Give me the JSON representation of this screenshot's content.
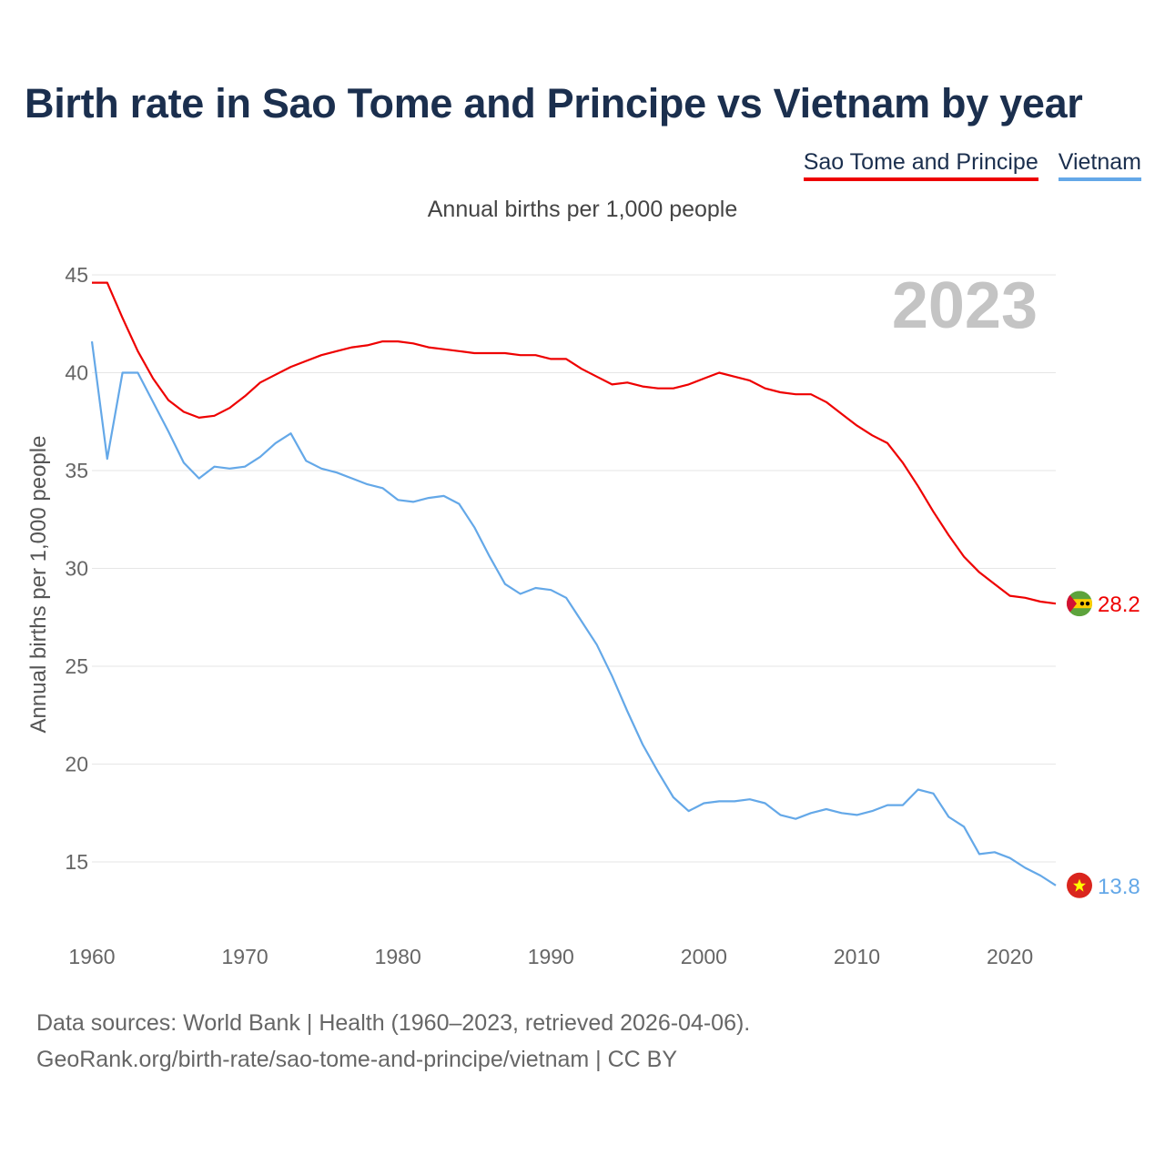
{
  "title": "Birth rate in Sao Tome and Principe vs Vietnam by year",
  "subtitle": "Annual births per 1,000 people",
  "footer": {
    "line1": "Data sources: World Bank | Health (1960–2023, retrieved 2026-04-06).",
    "line2": "GeoRank.org/birth-rate/sao-tome-and-principe/vietnam | CC BY"
  },
  "colors": {
    "sao_tome": "#ee0000",
    "vietnam": "#64a8e8",
    "title": "#1b2f4e"
  },
  "chart_data": {
    "type": "line",
    "title": "Birth rate in Sao Tome and Principe vs Vietnam by year",
    "ylabel": "Annual births per 1,000 people",
    "xlabel": "",
    "year_marker": "2023",
    "xlim": [
      1960,
      2023
    ],
    "ylim": [
      12,
      45
    ],
    "xticks": [
      1960,
      1970,
      1980,
      1990,
      2000,
      2010,
      2020
    ],
    "yticks": [
      15,
      20,
      25,
      30,
      35,
      40,
      45
    ],
    "grid": true,
    "legend": "top-right",
    "x": [
      1960,
      1961,
      1962,
      1963,
      1964,
      1965,
      1966,
      1967,
      1968,
      1969,
      1970,
      1971,
      1972,
      1973,
      1974,
      1975,
      1976,
      1977,
      1978,
      1979,
      1980,
      1981,
      1982,
      1983,
      1984,
      1985,
      1986,
      1987,
      1988,
      1989,
      1990,
      1991,
      1992,
      1993,
      1994,
      1995,
      1996,
      1997,
      1998,
      1999,
      2000,
      2001,
      2002,
      2003,
      2004,
      2005,
      2006,
      2007,
      2008,
      2009,
      2010,
      2011,
      2012,
      2013,
      2014,
      2015,
      2016,
      2017,
      2018,
      2019,
      2020,
      2021,
      2022,
      2023
    ],
    "series": [
      {
        "name": "Sao Tome and Principe",
        "color": "#ee0000",
        "end_label": "28.2",
        "values": [
          44.6,
          44.6,
          42.8,
          41.1,
          39.7,
          38.6,
          38.0,
          37.7,
          37.8,
          38.2,
          38.8,
          39.5,
          39.9,
          40.3,
          40.6,
          40.9,
          41.1,
          41.3,
          41.4,
          41.6,
          41.6,
          41.5,
          41.3,
          41.2,
          41.1,
          41.0,
          41.0,
          41.0,
          40.9,
          40.9,
          40.7,
          40.7,
          40.2,
          39.8,
          39.4,
          39.5,
          39.3,
          39.2,
          39.2,
          39.4,
          39.7,
          40.0,
          39.8,
          39.6,
          39.2,
          39.0,
          38.9,
          38.9,
          38.5,
          37.9,
          37.3,
          36.8,
          36.4,
          35.4,
          34.2,
          32.9,
          31.7,
          30.6,
          29.8,
          29.2,
          28.6,
          28.5,
          28.3,
          28.2
        ]
      },
      {
        "name": "Vietnam",
        "color": "#64a8e8",
        "end_label": "13.8",
        "values": [
          41.6,
          35.6,
          40.0,
          40.0,
          38.5,
          37.0,
          35.4,
          34.6,
          35.2,
          35.1,
          35.2,
          35.7,
          36.4,
          36.9,
          35.5,
          35.1,
          34.9,
          34.6,
          34.3,
          34.1,
          33.5,
          33.4,
          33.6,
          33.7,
          33.3,
          32.1,
          30.6,
          29.2,
          28.7,
          29.0,
          28.9,
          28.5,
          27.3,
          26.1,
          24.5,
          22.7,
          21.0,
          19.6,
          18.3,
          17.6,
          18.0,
          18.1,
          18.1,
          18.2,
          18.0,
          17.4,
          17.2,
          17.5,
          17.7,
          17.5,
          17.4,
          17.6,
          17.9,
          17.9,
          18.7,
          18.5,
          17.3,
          16.8,
          15.4,
          15.5,
          15.2,
          14.7,
          14.3,
          13.8
        ]
      }
    ]
  }
}
